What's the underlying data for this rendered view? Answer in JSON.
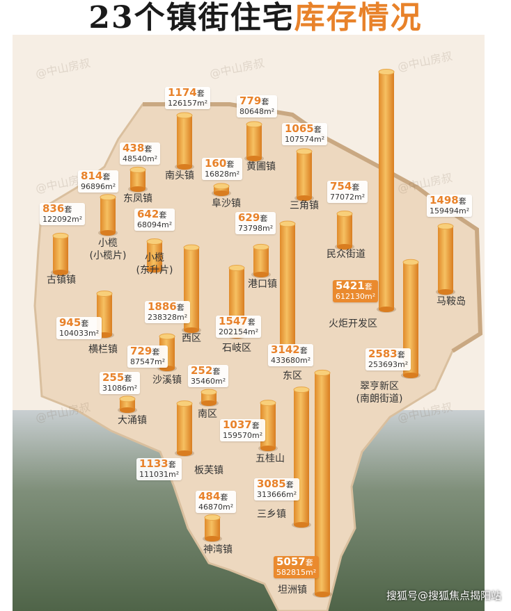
{
  "header": {
    "title": "23个镇街住宅",
    "title_highlight": "库存情况"
  },
  "watermark": "@中山房叔",
  "unit_label": "套",
  "area_unit": "m²",
  "regions": [
    {
      "name": "南头镇",
      "units": 1174,
      "area": 126157
    },
    {
      "name": "黄圃镇",
      "units": 779,
      "area": 80648
    },
    {
      "name": "东凤镇",
      "units": 438,
      "area": 48540
    },
    {
      "name": "阜沙镇",
      "units": 160,
      "area": 16828
    },
    {
      "name": "三角镇",
      "units": 1065,
      "area": 107574
    },
    {
      "name": "小榄",
      "name_sub": "(小榄片)",
      "units": 814,
      "area": 96896
    },
    {
      "name": "古镇镇",
      "units": 836,
      "area": 122092
    },
    {
      "name": "小榄",
      "name_sub": "(东升片)",
      "units": 642,
      "area": 68094
    },
    {
      "name": "民众街道",
      "units": 754,
      "area": 77072
    },
    {
      "name": "港口镇",
      "units": 629,
      "area": 73798
    },
    {
      "name": "马鞍岛",
      "units": 1498,
      "area": 159494
    },
    {
      "name": "火炬开发区",
      "units": 5421,
      "area": 612130,
      "highlight": true
    },
    {
      "name": "西区",
      "units": 1886,
      "area": 238328
    },
    {
      "name": "横栏镇",
      "units": 945,
      "area": 104033
    },
    {
      "name": "石岐区",
      "units": 1547,
      "area": 202154
    },
    {
      "name": "东区",
      "units": 3142,
      "area": 433680
    },
    {
      "name": "沙溪镇",
      "units": 729,
      "area": 87547
    },
    {
      "name": "翠亨新区",
      "name_sub": "(南朗街道)",
      "units": 2583,
      "area": 253693
    },
    {
      "name": "大涌镇",
      "units": 255,
      "area": 31086
    },
    {
      "name": "南区",
      "units": 252,
      "area": 35460
    },
    {
      "name": "五桂山",
      "units": 1037,
      "area": 159570
    },
    {
      "name": "板芙镇",
      "units": 1133,
      "area": 111031
    },
    {
      "name": "三乡镇",
      "units": 3085,
      "area": 313666
    },
    {
      "name": "神湾镇",
      "units": 484,
      "area": 46870
    },
    {
      "name": "坦洲镇",
      "units": 5057,
      "area": 582815,
      "highlight": true
    }
  ],
  "footer": "搜狐号@搜狐焦点揭阳站"
}
